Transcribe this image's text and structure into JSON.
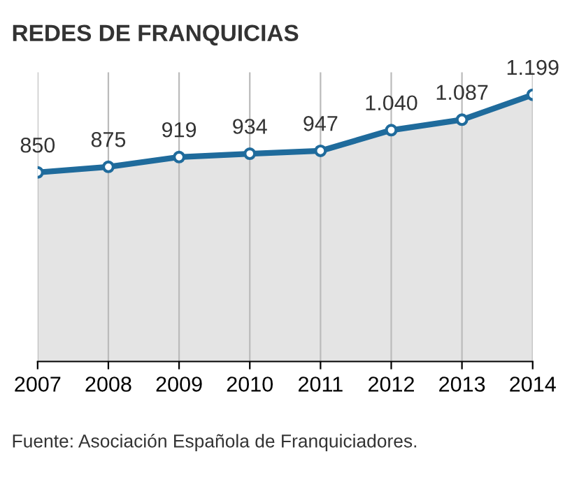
{
  "chart_data": {
    "type": "area",
    "title": "REDES DE FRANQUICIAS",
    "categories": [
      "2007",
      "2008",
      "2009",
      "2010",
      "2011",
      "2012",
      "2013",
      "2014"
    ],
    "series": [
      {
        "color": "#1f6b9c",
        "values": [
          850,
          875,
          919,
          934,
          947,
          1040,
          1087,
          1199
        ],
        "value_labels": [
          "850",
          "875",
          "919",
          "934",
          "947",
          "1.040",
          "1.087",
          "1.199"
        ]
      }
    ],
    "ylim": [
      0,
      1300
    ],
    "tick_labels": "x",
    "grid": "x",
    "marker": "circle",
    "line_style": "solid",
    "annotations": [
      "Fuente: Asociación Española de Franquiciadores."
    ]
  }
}
